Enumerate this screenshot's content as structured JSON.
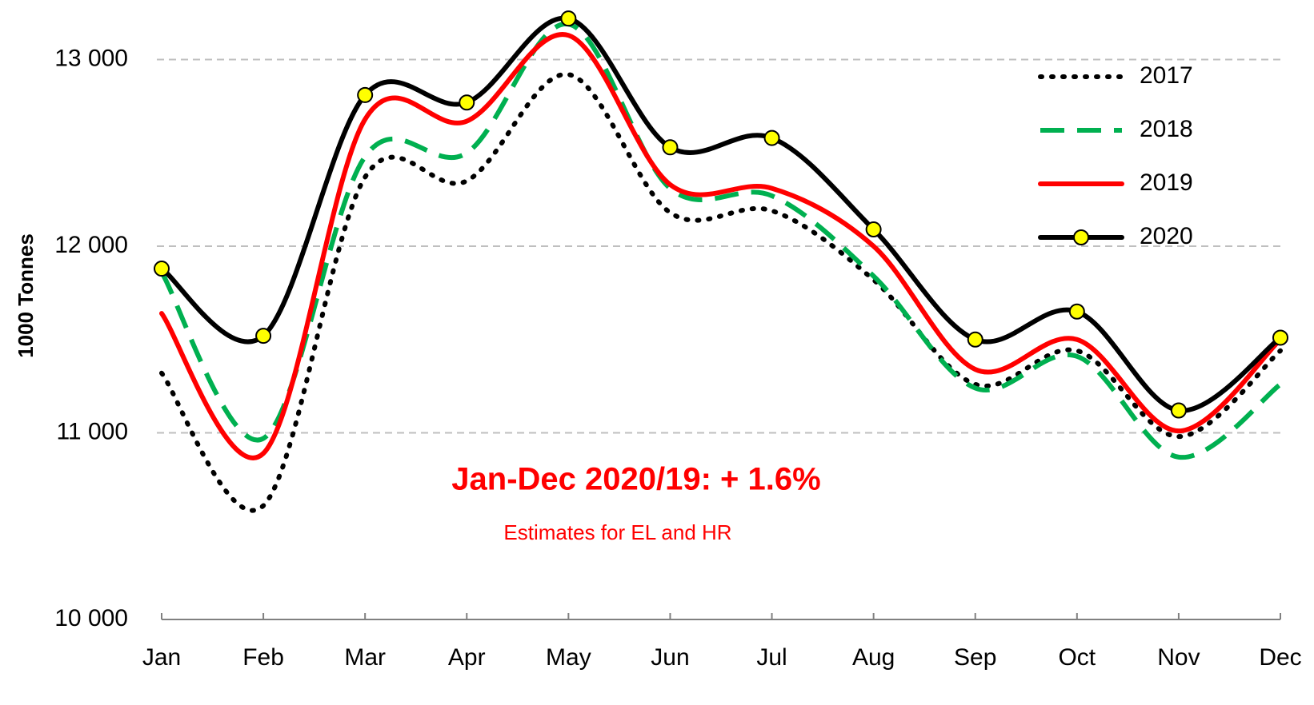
{
  "chart_data": {
    "type": "line",
    "y_label": "1000 Tonnes",
    "annotations": [
      "Jan-Dec 2020/19: + 1.6%",
      "Estimates for EL and HR"
    ],
    "categories": [
      "Jan",
      "Feb",
      "Mar",
      "Apr",
      "May",
      "Jun",
      "Jul",
      "Aug",
      "Sep",
      "Oct",
      "Nov",
      "Dec"
    ],
    "series": [
      {
        "name": "2017",
        "color": "#000000",
        "style": "dotted",
        "values": [
          11320,
          10610,
          12370,
          12350,
          12920,
          12180,
          12190,
          11820,
          11260,
          11440,
          10980,
          11440
        ]
      },
      {
        "name": "2018",
        "color": "#00b050",
        "style": "dashed",
        "values": [
          11860,
          10970,
          12480,
          12500,
          13190,
          12310,
          12270,
          11840,
          11240,
          11410,
          10870,
          11260
        ]
      },
      {
        "name": "2019",
        "color": "#ff0000",
        "style": "solid",
        "values": [
          11640,
          10890,
          12680,
          12670,
          13130,
          12330,
          12310,
          12000,
          11340,
          11500,
          11010,
          11500
        ]
      },
      {
        "name": "2020",
        "color": "#000000",
        "style": "solid",
        "marker": "circle",
        "marker_color": "#ffff00",
        "values": [
          11880,
          11520,
          12810,
          12770,
          13220,
          12530,
          12580,
          12090,
          11500,
          11650,
          11120,
          11510
        ]
      }
    ],
    "ylim": [
      10000,
      13300
    ],
    "yticks": [
      {
        "value": 10000,
        "label": "10 000"
      },
      {
        "value": 11000,
        "label": "11 000"
      },
      {
        "value": 12000,
        "label": "12 000"
      },
      {
        "value": 13000,
        "label": "13 000"
      }
    ],
    "grid": true,
    "legend": "upper right"
  }
}
